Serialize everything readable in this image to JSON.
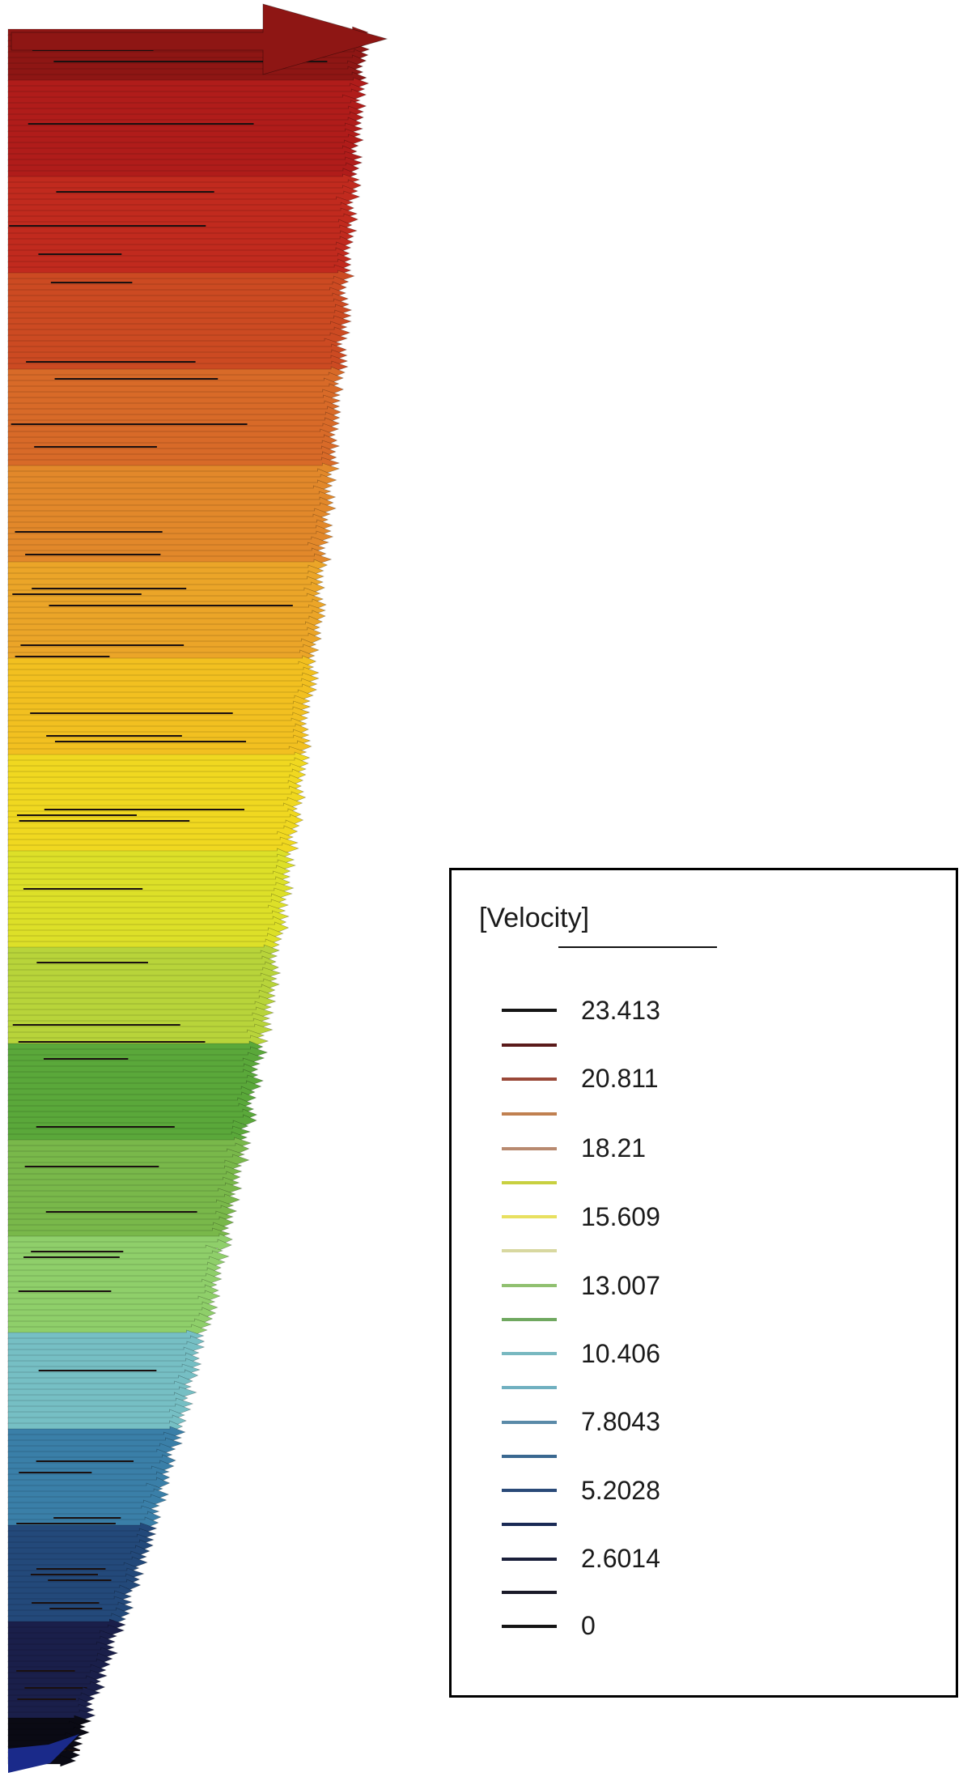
{
  "figure": {
    "flow_direction": "right",
    "colormap": [
      "#0a0a14",
      "#1a1f4a",
      "#23497a",
      "#3a7fa8",
      "#76bfc4",
      "#8fcf6a",
      "#79b84a",
      "#5aa83a",
      "#b8d43a",
      "#dde028",
      "#f0d820",
      "#f2c020",
      "#eba528",
      "#e2882a",
      "#d86a28",
      "#cc4a22",
      "#c12a1e",
      "#b01c1a",
      "#8e1614"
    ]
  },
  "legend": {
    "title": "[Velocity]",
    "entries": [
      {
        "value": "23.413",
        "color": "#151515"
      },
      {
        "value": "20.811",
        "color": "#9a4838"
      },
      {
        "value": "18.21",
        "color": "#b88a70"
      },
      {
        "value": "15.609",
        "color": "#e8e060"
      },
      {
        "value": "13.007",
        "color": "#90c070"
      },
      {
        "value": "10.406",
        "color": "#78b8c0"
      },
      {
        "value": "7.8043",
        "color": "#5a8aa8"
      },
      {
        "value": "5.2028",
        "color": "#2a4a78"
      },
      {
        "value": "2.6014",
        "color": "#1a1f3a"
      },
      {
        "value": "0",
        "color": "#141414"
      }
    ],
    "intermediate_colors": [
      "#5a1a1a",
      "#c08050",
      "#c8d040",
      "#d8d8a0",
      "#70a860",
      "#70b0c0",
      "#3a6890",
      "#1a2a55",
      "#1a1a28"
    ]
  }
}
